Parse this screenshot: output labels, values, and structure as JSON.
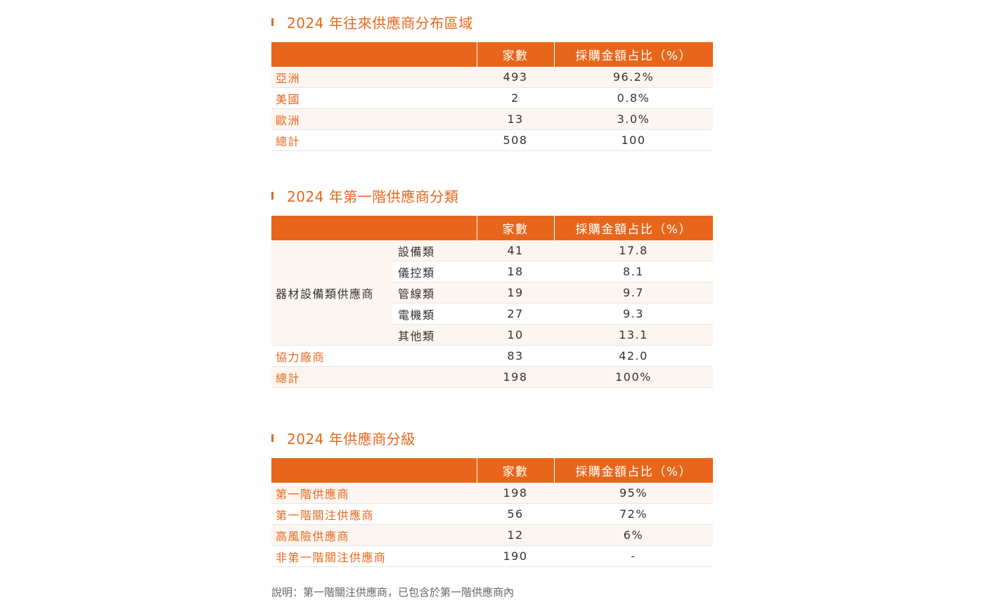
{
  "section1": {
    "title": "2024 年往來供應商分布區域",
    "headers": [
      "",
      "家數",
      "採購金額占比（%）"
    ],
    "rows": [
      {
        "label": "亞洲",
        "count": "493",
        "pct": "96.2%"
      },
      {
        "label": "美國",
        "count": "2",
        "pct": "0.8%"
      },
      {
        "label": "歐洲",
        "count": "13",
        "pct": "3.0%"
      },
      {
        "label": "總計",
        "count": "508",
        "pct": "100"
      }
    ]
  },
  "section2": {
    "title": "2024 年第一階供應商分類",
    "headers": [
      "",
      "家數",
      "採購金額占比（%）"
    ],
    "group_label": "器材設備類供應商",
    "group_rows": [
      {
        "label": "設備類",
        "count": "41",
        "pct": "17.8"
      },
      {
        "label": "儀控類",
        "count": "18",
        "pct": "8.1"
      },
      {
        "label": "管線類",
        "count": "19",
        "pct": "9.7"
      },
      {
        "label": "電機類",
        "count": "27",
        "pct": "9.3"
      },
      {
        "label": "其他類",
        "count": "10",
        "pct": "13.1"
      }
    ],
    "rows": [
      {
        "label": "協力廠商",
        "count": "83",
        "pct": "42.0"
      },
      {
        "label": "總計",
        "count": "198",
        "pct": "100%"
      }
    ]
  },
  "section3": {
    "title": "2024 年供應商分級",
    "headers": [
      "",
      "家數",
      "採購金額占比（%）"
    ],
    "rows": [
      {
        "label": "第一階供應商",
        "count": "198",
        "pct": "95%"
      },
      {
        "label": "第一階關注供應商",
        "count": "56",
        "pct": "72%"
      },
      {
        "label": "高風險供應商",
        "count": "12",
        "pct": "6%"
      },
      {
        "label": "非第一階關注供應商",
        "count": "190",
        "pct": "-"
      }
    ]
  },
  "note": "說明：第一階關注供應商，已包含於第一階供應商內",
  "colors": {
    "accent": "#e8661c",
    "row_shade": "#fdf5ef"
  }
}
